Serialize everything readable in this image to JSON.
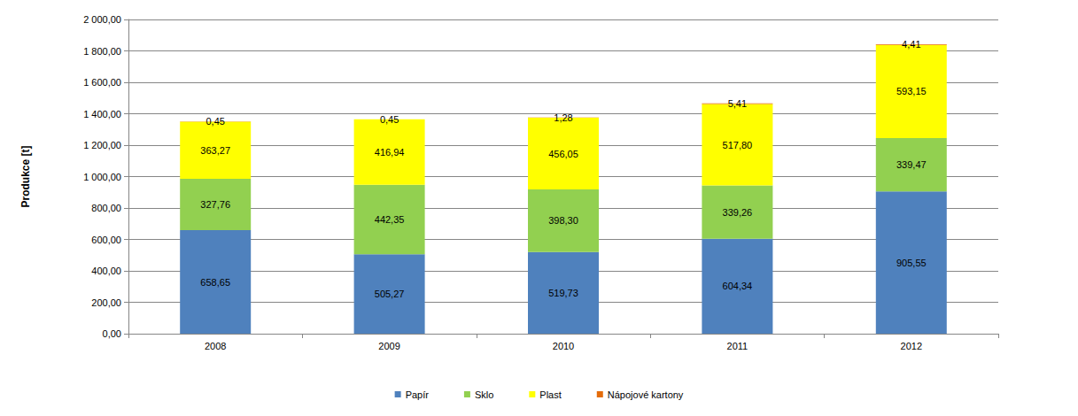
{
  "chart_data": {
    "type": "bar",
    "stacked": true,
    "data_labels": true,
    "grid": true,
    "legend": "bottom",
    "y_label": "Produkce [t]",
    "categories": [
      "2008",
      "2009",
      "2010",
      "2011",
      "2012"
    ],
    "ylim": [
      0,
      2000
    ],
    "yticks": [
      {
        "value": 0,
        "label": "0,00"
      },
      {
        "value": 200,
        "label": "200,00"
      },
      {
        "value": 400,
        "label": "400,00"
      },
      {
        "value": 600,
        "label": "600,00"
      },
      {
        "value": 800,
        "label": "800,00"
      },
      {
        "value": 1000,
        "label": "1 000,00"
      },
      {
        "value": 1200,
        "label": "1 200,00"
      },
      {
        "value": 1400,
        "label": "1 400,00"
      },
      {
        "value": 1600,
        "label": "1 600,00"
      },
      {
        "value": 1800,
        "label": "1 800,00"
      },
      {
        "value": 2000,
        "label": "2 000,00"
      }
    ],
    "series": [
      {
        "name": "Papír",
        "color": "#4f81bd",
        "values": [
          658.65,
          505.27,
          519.73,
          604.34,
          905.55
        ],
        "value_labels": [
          "658,65",
          "505,27",
          "519,73",
          "604,34",
          "905,55"
        ]
      },
      {
        "name": "Sklo",
        "color": "#92d050",
        "values": [
          327.76,
          442.35,
          398.3,
          339.26,
          339.47
        ],
        "value_labels": [
          "327,76",
          "442,35",
          "398,30",
          "339,26",
          "339,47"
        ]
      },
      {
        "name": "Plast",
        "color": "#ffff00",
        "values": [
          363.27,
          416.94,
          456.05,
          517.8,
          593.15
        ],
        "value_labels": [
          "363,27",
          "416,94",
          "456,05",
          "517,80",
          "593,15"
        ]
      },
      {
        "name": "Nápojové kartony",
        "color": "#e46c0a",
        "values": [
          0.45,
          0.45,
          1.28,
          5.41,
          4.41
        ],
        "value_labels": [
          "0,45",
          "0,45",
          "1,28",
          "5,41",
          "4,41"
        ]
      }
    ]
  }
}
